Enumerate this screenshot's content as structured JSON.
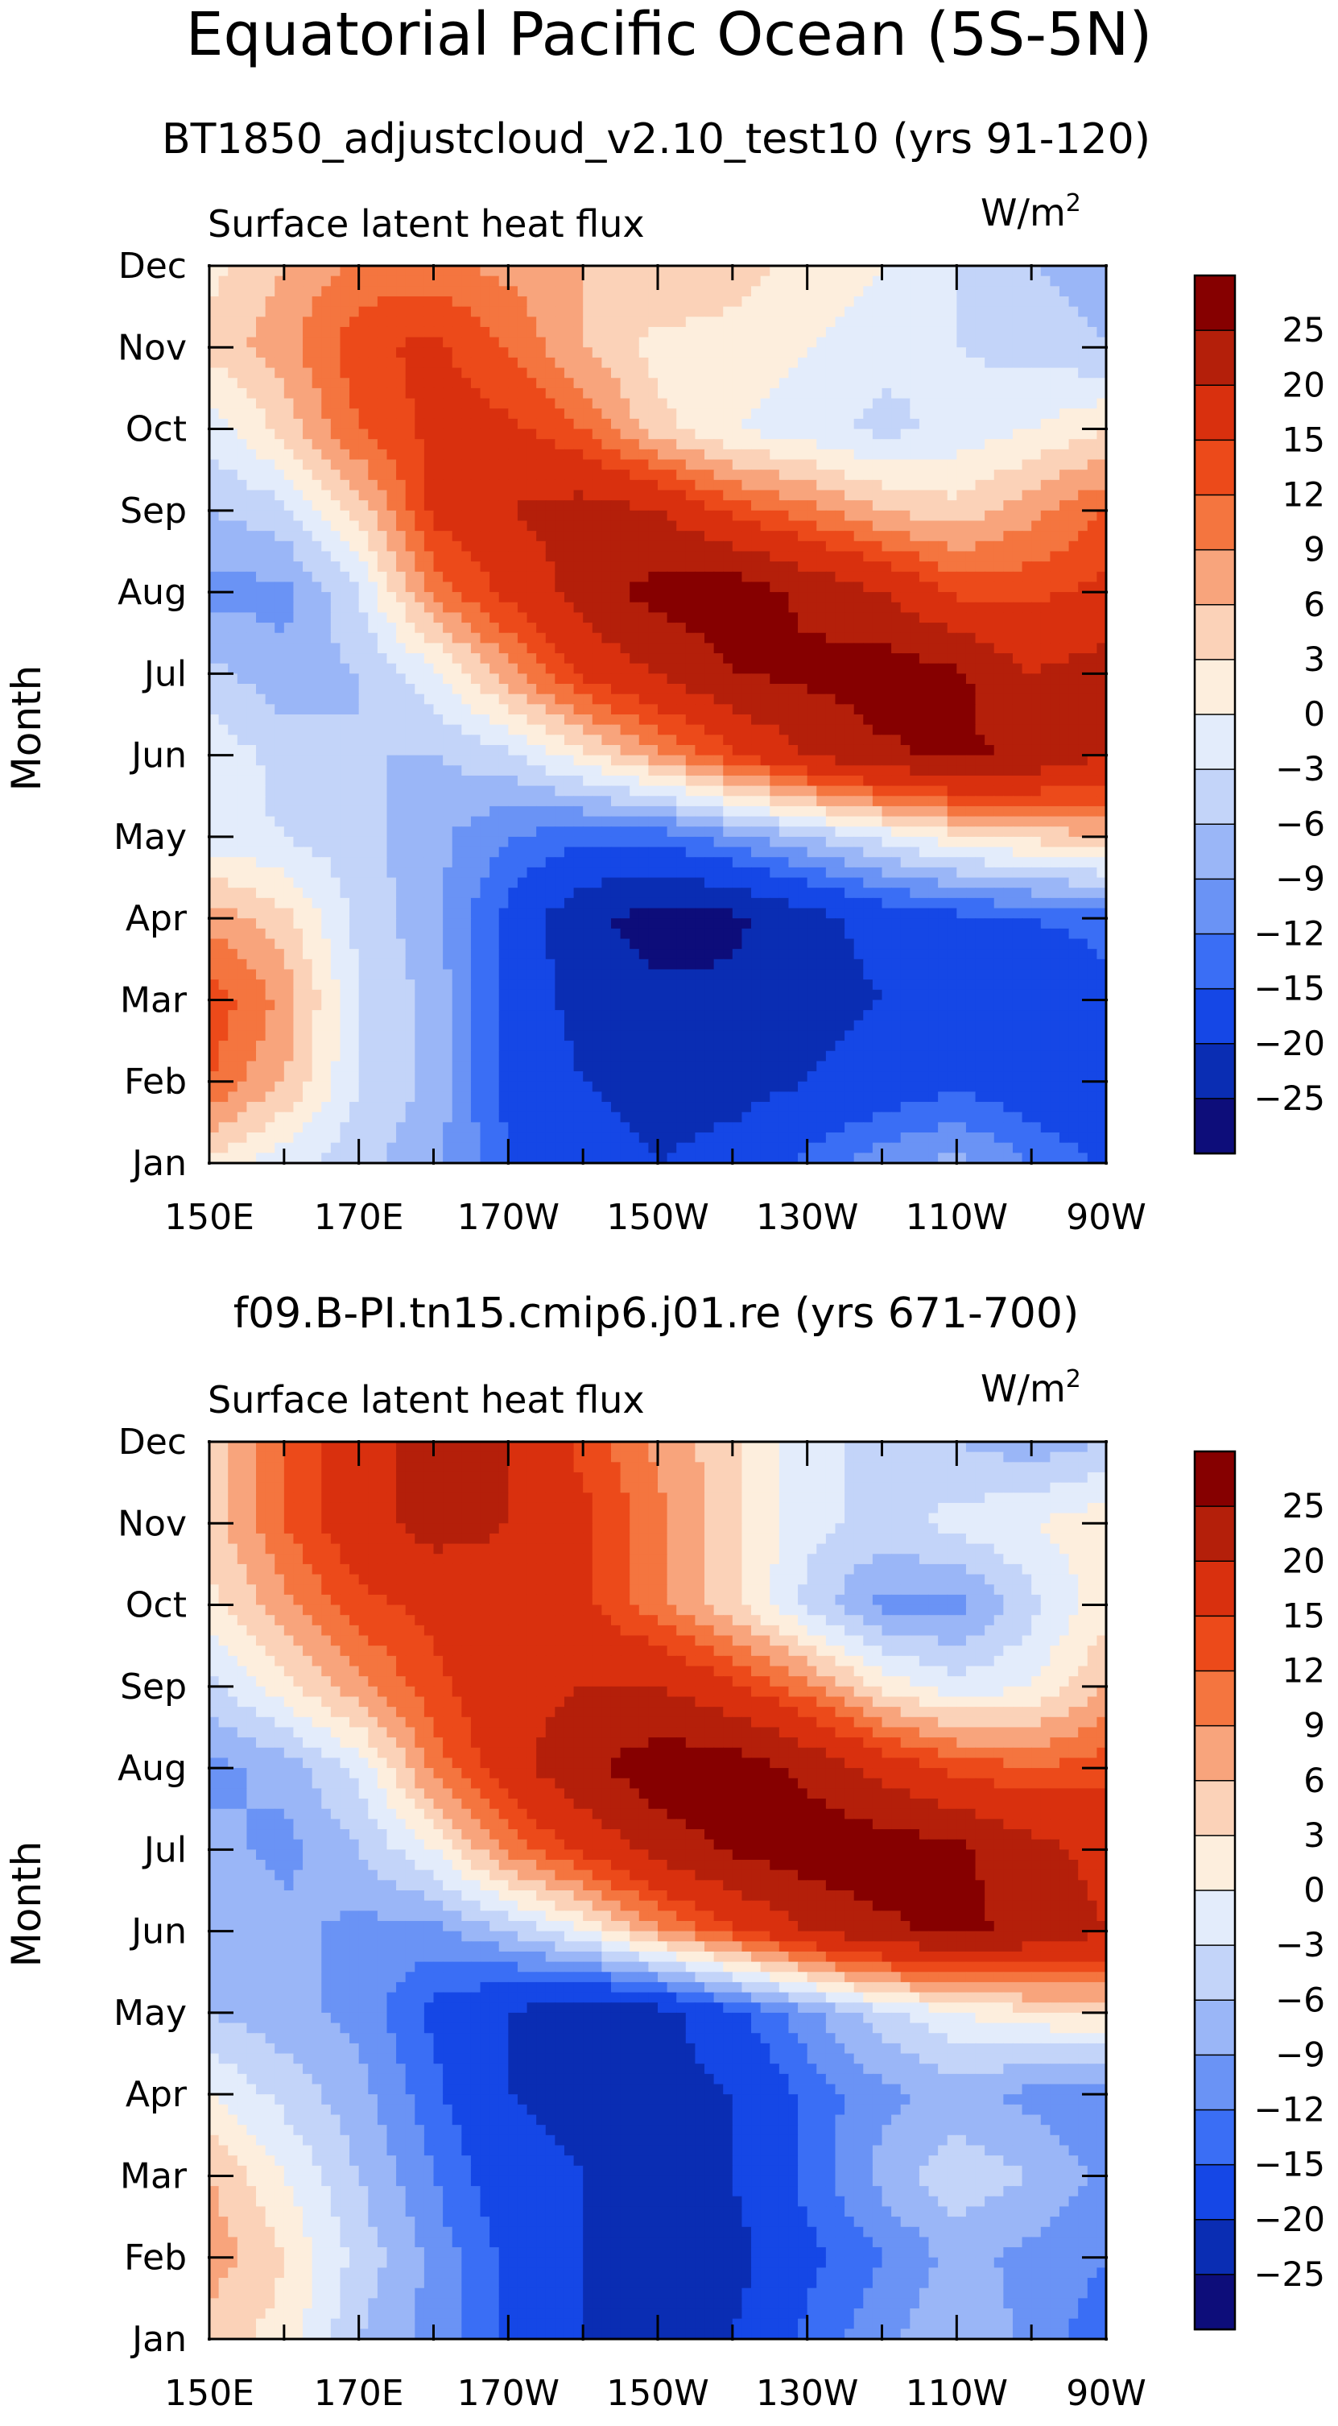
{
  "figure": {
    "title": "Equatorial Pacific Ocean (5S-5N)"
  },
  "palette": [
    "#0d0d7a",
    "#0a2db3",
    "#1547e6",
    "#3a6ef5",
    "#6a93f5",
    "#9ab6f7",
    "#c3d4f9",
    "#e3ecfb",
    "#fdeedd",
    "#fbd2b8",
    "#f8a47c",
    "#f4753f",
    "#ec4a1a",
    "#d9300e",
    "#b41f0a",
    "#860000"
  ],
  "chart_data": [
    {
      "type": "heatmap",
      "title": "BT1850_adjustcloud_v2.10_test10 (yrs 91-120)",
      "variable_label": "Surface latent heat flux",
      "units_label": "W/m",
      "units_exp": "2",
      "ylabel": "Month",
      "xlabel": "",
      "x_tick_labels": [
        "150E",
        "170E",
        "170W",
        "150W",
        "130W",
        "110W",
        "90W"
      ],
      "x": [
        150,
        160,
        170,
        180,
        190,
        200,
        210,
        220,
        230,
        240,
        250,
        260,
        270
      ],
      "y_tick_labels": [
        "Jan",
        "Feb",
        "Mar",
        "Apr",
        "May",
        "Jun",
        "Jul",
        "Aug",
        "Sep",
        "Oct",
        "Nov",
        "Dec"
      ],
      "levels": [
        -25,
        -20,
        -15,
        -12,
        -9,
        -6,
        -3,
        0,
        3,
        6,
        9,
        12,
        15,
        20,
        25
      ],
      "colorbar_labels": [
        "25",
        "20",
        "15",
        "12",
        "9",
        "6",
        "3",
        "0",
        "−3",
        "−6",
        "−9",
        "−12",
        "−15",
        "−20",
        "−25"
      ],
      "z": [
        [
          2,
          -2,
          -5,
          -8,
          -15,
          -18,
          -20,
          -18,
          -14,
          -10,
          -8,
          -12,
          -16
        ],
        [
          12,
          6,
          -3,
          -7,
          -16,
          -20,
          -22,
          -22,
          -20,
          -18,
          -16,
          -18,
          -18
        ],
        [
          14,
          8,
          -3,
          -7,
          -16,
          -22,
          -24,
          -24,
          -22,
          -20,
          -18,
          -18,
          -16
        ],
        [
          8,
          4,
          -4,
          -8,
          -16,
          -24,
          -27,
          -26,
          -22,
          -18,
          -16,
          -15,
          -14
        ],
        [
          -2,
          -3,
          -5,
          -8,
          -12,
          -14,
          -14,
          -10,
          -6,
          -2,
          2,
          4,
          6
        ],
        [
          -1,
          -4,
          -6,
          -6,
          -4,
          2,
          8,
          14,
          20,
          24,
          26,
          24,
          20
        ],
        [
          -5,
          -8,
          -6,
          -1,
          8,
          16,
          20,
          25,
          26,
          28,
          26,
          20,
          22
        ],
        [
          -10,
          -10,
          -3,
          10,
          16,
          22,
          27,
          28,
          24,
          20,
          14,
          14,
          16
        ],
        [
          -6,
          -4,
          4,
          16,
          20,
          22,
          20,
          14,
          10,
          6,
          4,
          8,
          12
        ],
        [
          -2,
          4,
          12,
          16,
          16,
          12,
          4,
          0,
          -2,
          -4,
          -2,
          0,
          3
        ],
        [
          4,
          8,
          14,
          16,
          12,
          6,
          2,
          2,
          0,
          -2,
          -3,
          -4,
          -6
        ],
        [
          2,
          6,
          10,
          10,
          8,
          6,
          6,
          4,
          2,
          0,
          -3,
          -6,
          -8
        ]
      ]
    },
    {
      "type": "heatmap",
      "title": "f09.B-PI.tn15.cmip6.j01.re (yrs 671-700)",
      "variable_label": "Surface latent heat flux",
      "units_label": "W/m",
      "units_exp": "2",
      "ylabel": "Month",
      "xlabel": "",
      "x_tick_labels": [
        "150E",
        "170E",
        "170W",
        "150W",
        "130W",
        "110W",
        "90W"
      ],
      "x": [
        150,
        160,
        170,
        180,
        190,
        200,
        210,
        220,
        230,
        240,
        250,
        260,
        270
      ],
      "y_tick_labels": [
        "Jan",
        "Feb",
        "Mar",
        "Apr",
        "May",
        "Jun",
        "Jul",
        "Aug",
        "Sep",
        "Oct",
        "Nov",
        "Dec"
      ],
      "levels": [
        -25,
        -20,
        -15,
        -12,
        -9,
        -6,
        -3,
        0,
        3,
        6,
        9,
        12,
        15,
        20,
        25
      ],
      "colorbar_labels": [
        "25",
        "20",
        "15",
        "12",
        "9",
        "6",
        "3",
        "0",
        "−3",
        "−6",
        "−9",
        "−12",
        "−15",
        "−20",
        "−25"
      ],
      "z": [
        [
          4,
          2,
          -6,
          -10,
          -16,
          -20,
          -22,
          -20,
          -14,
          -10,
          -6,
          -10,
          -14
        ],
        [
          8,
          3,
          -4,
          -10,
          -16,
          -20,
          -24,
          -22,
          -16,
          -12,
          -8,
          -10,
          -12
        ],
        [
          6,
          0,
          -6,
          -12,
          -18,
          -20,
          -22,
          -20,
          -14,
          -8,
          -4,
          -6,
          -10
        ],
        [
          0,
          -4,
          -8,
          -14,
          -20,
          -22,
          -22,
          -20,
          -14,
          -10,
          -8,
          -10,
          -12
        ],
        [
          -6,
          -8,
          -10,
          -16,
          -20,
          -24,
          -22,
          -16,
          -10,
          -4,
          0,
          2,
          4
        ],
        [
          -6,
          -8,
          -10,
          -10,
          -6,
          0,
          8,
          14,
          20,
          24,
          26,
          24,
          20
        ],
        [
          -8,
          -10,
          -6,
          0,
          10,
          16,
          22,
          26,
          28,
          28,
          26,
          22,
          18
        ],
        [
          -10,
          -8,
          -2,
          10,
          18,
          24,
          28,
          28,
          24,
          18,
          14,
          12,
          14
        ],
        [
          -4,
          2,
          8,
          14,
          18,
          20,
          20,
          16,
          10,
          2,
          -2,
          0,
          6
        ],
        [
          2,
          8,
          14,
          16,
          18,
          16,
          10,
          4,
          -4,
          -10,
          -10,
          -4,
          2
        ],
        [
          4,
          12,
          18,
          22,
          20,
          16,
          10,
          4,
          -2,
          -4,
          -2,
          0,
          2
        ],
        [
          4,
          12,
          18,
          22,
          20,
          14,
          8,
          4,
          -2,
          -4,
          -6,
          -8,
          -6
        ]
      ]
    }
  ]
}
